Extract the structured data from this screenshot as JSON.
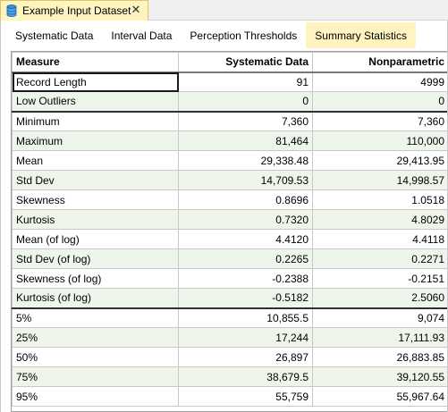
{
  "document_tab": {
    "title": "Example Input Dataset",
    "close_glyph": "✕",
    "icon": "database-icon"
  },
  "tabs": [
    {
      "label": "Systematic Data",
      "active": false
    },
    {
      "label": "Interval Data",
      "active": false
    },
    {
      "label": "Perception Thresholds",
      "active": false
    },
    {
      "label": "Summary Statistics",
      "active": true
    }
  ],
  "table": {
    "columns": [
      "Measure",
      "Systematic Data",
      "Nonparametric"
    ],
    "rows": [
      {
        "measure": "Record Length",
        "systematic": "91",
        "nonparametric": "4999"
      },
      {
        "measure": "Low Outliers",
        "systematic": "0",
        "nonparametric": "0"
      },
      {
        "measure": "Minimum",
        "systematic": "7,360",
        "nonparametric": "7,360"
      },
      {
        "measure": "Maximum",
        "systematic": "81,464",
        "nonparametric": "110,000"
      },
      {
        "measure": "Mean",
        "systematic": "29,338.48",
        "nonparametric": "29,413.95"
      },
      {
        "measure": "Std Dev",
        "systematic": "14,709.53",
        "nonparametric": "14,998.57"
      },
      {
        "measure": "Skewness",
        "systematic": "0.8696",
        "nonparametric": "1.0518"
      },
      {
        "measure": "Kurtosis",
        "systematic": "0.7320",
        "nonparametric": "4.8029"
      },
      {
        "measure": "Mean (of log)",
        "systematic": "4.4120",
        "nonparametric": "4.4118"
      },
      {
        "measure": "Std Dev (of log)",
        "systematic": "0.2265",
        "nonparametric": "0.2271"
      },
      {
        "measure": "Skewness (of log)",
        "systematic": "-0.2388",
        "nonparametric": "-0.2151"
      },
      {
        "measure": "Kurtosis (of log)",
        "systematic": "-0.5182",
        "nonparametric": "2.5060"
      },
      {
        "measure": "5%",
        "systematic": "10,855.5",
        "nonparametric": "9,074"
      },
      {
        "measure": "25%",
        "systematic": "17,244",
        "nonparametric": "17,111.93"
      },
      {
        "measure": "50%",
        "systematic": "26,897",
        "nonparametric": "26,883.85"
      },
      {
        "measure": "75%",
        "systematic": "38,679.5",
        "nonparametric": "39,120.55"
      },
      {
        "measure": "95%",
        "systematic": "55,759",
        "nonparametric": "55,967.64"
      }
    ]
  },
  "colors": {
    "active_tab": "#fdf4bf",
    "alt_row": "#eef5ea"
  }
}
